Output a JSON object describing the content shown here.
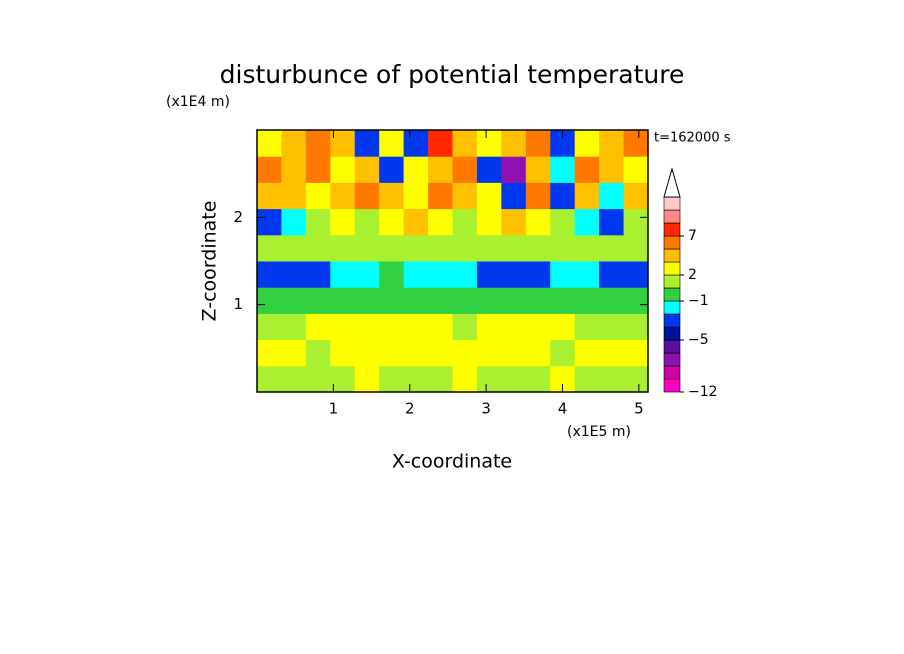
{
  "chart_data": {
    "type": "contour",
    "title": "disturbunce of potential temperature",
    "x_label": "X-coordinate",
    "y_label": "Z-coordinate",
    "x_unit": "(x1E5 m)",
    "y_unit": "(x1E4 m)",
    "annotation": "t=162000 s",
    "xlim": [
      0,
      5.12
    ],
    "ylim": [
      0,
      3
    ],
    "xticks": [
      1,
      2,
      3,
      4,
      5
    ],
    "yticks": [
      1,
      2
    ],
    "field": {
      "x": [
        0.16,
        0.48,
        0.8,
        1.12,
        1.44,
        1.76,
        2.08,
        2.4,
        2.72,
        3.04,
        3.36,
        3.68,
        4.0,
        4.32,
        4.64,
        4.96
      ],
      "z": [
        0.15,
        0.45,
        0.75,
        1.05,
        1.35,
        1.65,
        1.95,
        2.25,
        2.55,
        2.85
      ],
      "values": [
        [
          0.5,
          1.5,
          0.5,
          1.5,
          2.5,
          1.5,
          0.5,
          1.5,
          2.5,
          1.5,
          0.5,
          1.5,
          2.5,
          1.5,
          0.5,
          1.5
        ],
        [
          2.5,
          2.5,
          1.5,
          2.5,
          2.5,
          2.5,
          2.5,
          2.5,
          2.5,
          2.5,
          2.5,
          2.5,
          1.5,
          2.5,
          2.5,
          2.5
        ],
        [
          1.5,
          1.5,
          2.5,
          2.5,
          2.5,
          2.5,
          2.5,
          2.5,
          1.5,
          2.5,
          2.5,
          2.5,
          2.5,
          1.5,
          1.5,
          1.5
        ],
        [
          -0.5,
          -0.5,
          -0.5,
          -0.5,
          -0.5,
          -0.5,
          -0.5,
          -0.5,
          -0.5,
          -0.5,
          -0.5,
          -0.5,
          -0.5,
          -0.5,
          -0.5,
          -0.5
        ],
        [
          -3,
          -3,
          -3,
          -1.5,
          -1.5,
          -0.5,
          -1.5,
          -1.5,
          -1.5,
          -3,
          -3,
          -3,
          -1.5,
          -1.5,
          -3,
          -3
        ],
        [
          0.5,
          0.5,
          0.5,
          1.5,
          0.5,
          0.5,
          1.5,
          1.5,
          1.5,
          0.5,
          0.5,
          0.5,
          1.5,
          0.5,
          0.5,
          0.5
        ],
        [
          -3,
          -1.5,
          1.5,
          2.5,
          1.5,
          2.5,
          4,
          2.5,
          1.5,
          2.5,
          4,
          2.5,
          1.5,
          -1.5,
          -3,
          1.5
        ],
        [
          4,
          4,
          2.5,
          4,
          6,
          4,
          2.5,
          6,
          4,
          2.5,
          -3,
          6,
          -3,
          4,
          -1.5,
          4
        ],
        [
          6,
          4,
          6,
          2.5,
          4,
          -3,
          2.5,
          4,
          6,
          -3,
          -7,
          4,
          -1.5,
          6,
          4,
          2.5
        ],
        [
          2.5,
          4,
          6,
          4,
          -4,
          2.5,
          -4,
          8,
          4,
          2.5,
          4,
          6,
          -4,
          2.5,
          4,
          6
        ]
      ]
    },
    "colorbar": {
      "levels": [
        -12,
        -10,
        -8,
        -6,
        -5,
        -4,
        -2,
        -1,
        0,
        2,
        3,
        5,
        7,
        9,
        11,
        13
      ],
      "colors": [
        "#ff00c8",
        "#d000a8",
        "#9010b0",
        "#5a10a0",
        "#0010a0",
        "#0038f0",
        "#00ffff",
        "#30d040",
        "#a8f030",
        "#ffff00",
        "#ffc000",
        "#ff7800",
        "#ff2800",
        "#ff8888",
        "#ffc8c8"
      ],
      "ticks": [
        {
          "value": -12,
          "label": "−12"
        },
        {
          "value": -5,
          "label": "−5"
        },
        {
          "value": -1,
          "label": "−1"
        },
        {
          "value": 2,
          "label": "2"
        },
        {
          "value": 7,
          "label": "7"
        }
      ]
    }
  }
}
